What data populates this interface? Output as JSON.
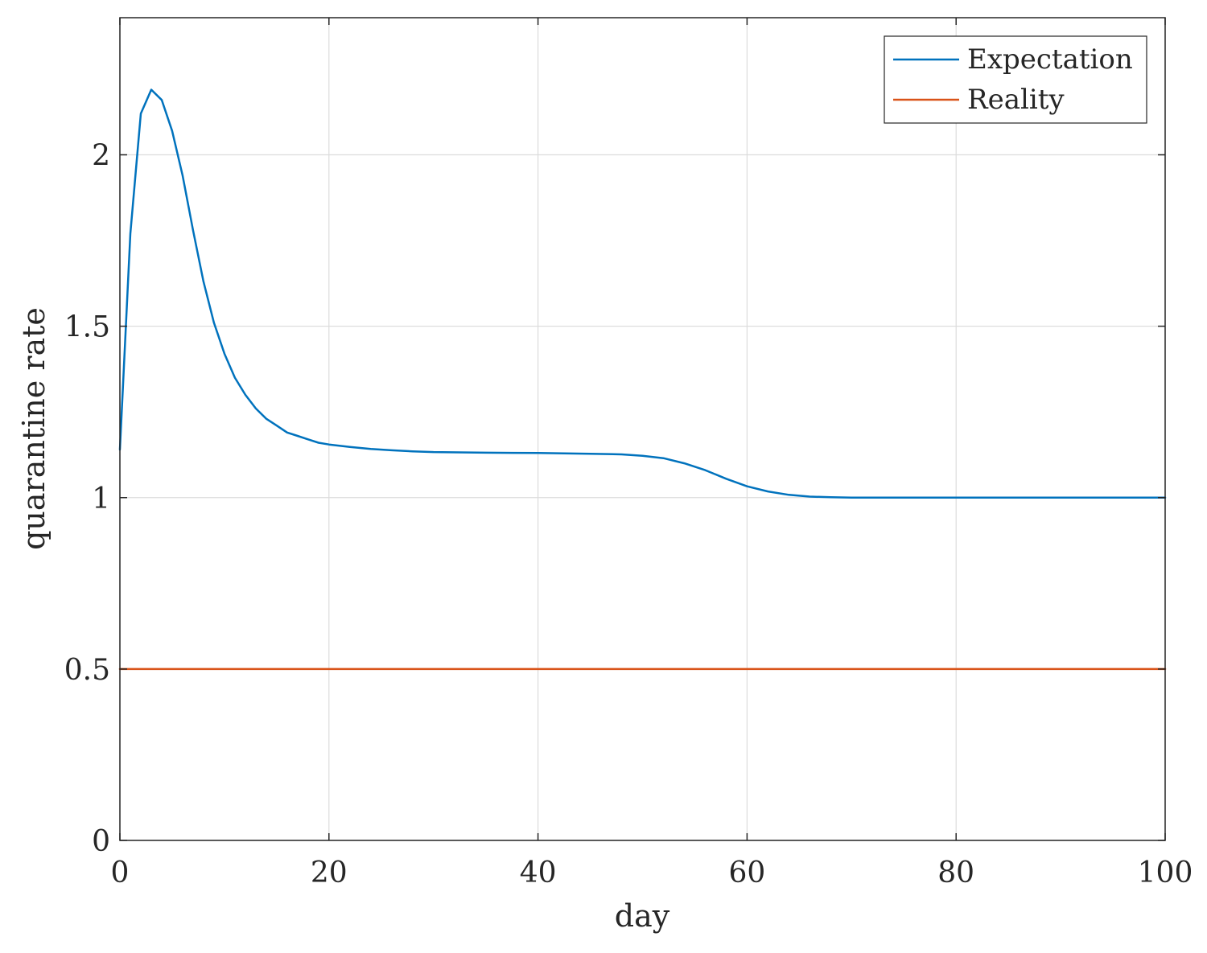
{
  "chart_data": {
    "type": "line",
    "title": "",
    "xlabel": "day",
    "ylabel": "quarantine rate",
    "xlim": [
      0,
      100
    ],
    "ylim": [
      0,
      2.4
    ],
    "xticks": [
      0,
      20,
      40,
      60,
      80,
      100
    ],
    "xtick_labels": [
      "0",
      "20",
      "40",
      "60",
      "80",
      "100"
    ],
    "yticks": [
      0,
      0.5,
      1,
      1.5,
      2
    ],
    "ytick_labels": [
      "0",
      "0.5",
      "1",
      "1.5",
      "2"
    ],
    "grid": true,
    "legend_position": "top-right",
    "series": [
      {
        "name": "Expectation",
        "color": "#0072BD",
        "x": [
          0,
          1,
          2,
          3,
          4,
          5,
          6,
          7,
          8,
          9,
          10,
          11,
          12,
          13,
          14,
          15,
          16,
          17,
          18,
          19,
          20,
          22,
          24,
          26,
          28,
          30,
          35,
          40,
          45,
          48,
          50,
          52,
          54,
          56,
          58,
          60,
          62,
          64,
          66,
          68,
          70,
          75,
          80,
          90,
          100
        ],
        "y": [
          1.14,
          1.77,
          2.12,
          2.19,
          2.16,
          2.07,
          1.94,
          1.78,
          1.63,
          1.51,
          1.42,
          1.35,
          1.3,
          1.26,
          1.23,
          1.21,
          1.19,
          1.18,
          1.17,
          1.16,
          1.155,
          1.148,
          1.142,
          1.138,
          1.135,
          1.133,
          1.131,
          1.13,
          1.128,
          1.126,
          1.122,
          1.115,
          1.1,
          1.08,
          1.055,
          1.033,
          1.018,
          1.008,
          1.003,
          1.001,
          1.0,
          1.0,
          1.0,
          1.0,
          1.0
        ]
      },
      {
        "name": "Reality",
        "color": "#D95319",
        "x": [
          0,
          100
        ],
        "y": [
          0.5,
          0.5
        ]
      }
    ]
  }
}
